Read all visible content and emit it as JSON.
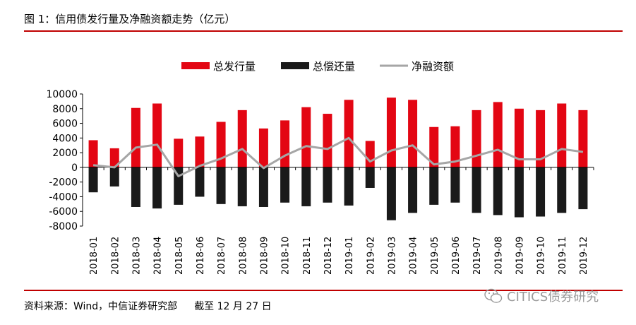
{
  "figure": {
    "title": "图 1：信用债发行量及净融资额走势（亿元）",
    "source": "资料来源：Wind，中信证券研究部",
    "cutoff": "截至 12 月 27 日",
    "watermark": "CITICS债券研究",
    "watermark_icon": "wechat-icon"
  },
  "colors": {
    "rule": "#c00000",
    "issuance": "#e30613",
    "repayment": "#1a1a1a",
    "net_financing": "#a6a6a6"
  },
  "chart_data": {
    "type": "bar",
    "categories": [
      "2018-01",
      "2018-02",
      "2018-03",
      "2018-04",
      "2018-05",
      "2018-06",
      "2018-07",
      "2018-08",
      "2018-09",
      "2018-10",
      "2018-11",
      "2018-12",
      "2019-01",
      "2019-02",
      "2019-03",
      "2019-04",
      "2019-05",
      "2019-06",
      "2019-07",
      "2019-08",
      "2019-09",
      "2019-10",
      "2019-11",
      "2019-12"
    ],
    "series": [
      {
        "name": "总发行量",
        "type": "bar",
        "color": "#e30613",
        "values": [
          3700,
          2600,
          8100,
          8700,
          3900,
          4200,
          6200,
          7800,
          5300,
          6400,
          8200,
          7300,
          9200,
          3600,
          9500,
          9200,
          5500,
          5600,
          7800,
          8900,
          8000,
          7800,
          8700,
          7800
        ]
      },
      {
        "name": "总偿还量",
        "type": "bar",
        "color": "#1a1a1a",
        "values": [
          -3400,
          -2600,
          -5400,
          -5600,
          -5100,
          -4000,
          -5000,
          -5300,
          -5400,
          -4800,
          -5300,
          -4800,
          -5200,
          -2800,
          -7200,
          -6200,
          -5100,
          -4800,
          -6200,
          -6500,
          -6800,
          -6700,
          -6200,
          -5700
        ]
      },
      {
        "name": "净融资额",
        "type": "line",
        "color": "#a6a6a6",
        "values": [
          300,
          0,
          2700,
          3100,
          -1200,
          200,
          1200,
          2500,
          -100,
          1600,
          2900,
          2500,
          4000,
          800,
          2300,
          3000,
          400,
          800,
          1600,
          2400,
          1100,
          1100,
          2500,
          2100
        ]
      }
    ],
    "ylim": [
      -8000,
      10000
    ],
    "yticks": [
      10000,
      8000,
      6000,
      4000,
      2000,
      0,
      -2000,
      -4000,
      -6000,
      -8000
    ],
    "legend": "top-center",
    "grid": false
  }
}
